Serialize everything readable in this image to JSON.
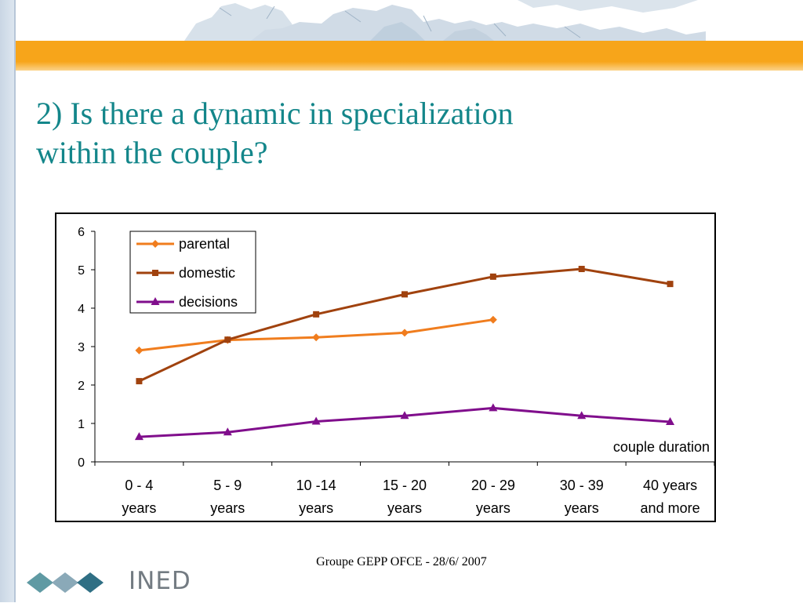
{
  "slide": {
    "title_line1": "2) Is there a dynamic in specialization",
    "title_line2": "within the couple?",
    "footer": "Groupe GEPP OFCE - 28/6/ 2007",
    "logo_text": "INED"
  },
  "colors": {
    "title": "#13868a",
    "band": "#f7a51a",
    "parental": "#f07d1e",
    "domestic": "#a0420e",
    "decisions": "#800e8c"
  },
  "chart_data": {
    "type": "line",
    "categories": [
      [
        "0 - 4",
        "years"
      ],
      [
        "5 - 9",
        "years"
      ],
      [
        "10 -14",
        "years"
      ],
      [
        "15 - 20",
        "years"
      ],
      [
        "20 - 29",
        "years"
      ],
      [
        "30 - 39",
        "years"
      ],
      [
        "40 years",
        "and more"
      ]
    ],
    "series": [
      {
        "name": "parental",
        "color": "#f07d1e",
        "marker": "diamond",
        "values": [
          2.9,
          3.17,
          3.24,
          3.36,
          3.7,
          null,
          null
        ]
      },
      {
        "name": "domestic",
        "color": "#a0420e",
        "marker": "square",
        "values": [
          2.1,
          3.18,
          3.84,
          4.36,
          4.82,
          5.02,
          4.63
        ]
      },
      {
        "name": "decisions",
        "color": "#800e8c",
        "marker": "triangle",
        "values": [
          0.65,
          0.77,
          1.05,
          1.2,
          1.4,
          1.2,
          1.04
        ]
      }
    ],
    "ylim": [
      0,
      6
    ],
    "yticks": [
      0,
      1,
      2,
      3,
      4,
      5,
      6
    ],
    "annotation": "couple duration",
    "legend_position": "top-left",
    "grid": false
  }
}
